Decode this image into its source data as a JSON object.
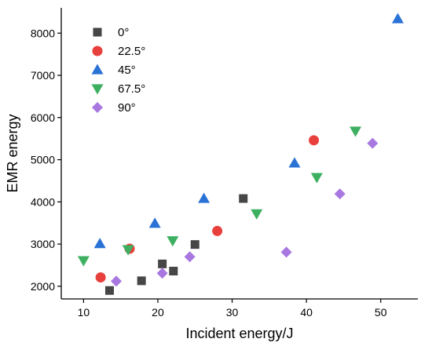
{
  "chart_data": {
    "type": "scatter",
    "title": "",
    "xlabel": "Incident energy/J",
    "ylabel": "EMR energy",
    "xlim": [
      7,
      55
    ],
    "ylim": [
      1700,
      8600
    ],
    "xticks": [
      10,
      20,
      30,
      40,
      50
    ],
    "yticks": [
      2000,
      3000,
      4000,
      5000,
      6000,
      7000,
      8000
    ],
    "grid": false,
    "legend": "top-left",
    "series": [
      {
        "name": "0°",
        "marker": "square",
        "color": "#464646",
        "points": [
          [
            13.5,
            1900
          ],
          [
            17.8,
            2130
          ],
          [
            20.6,
            2530
          ],
          [
            22.1,
            2360
          ],
          [
            25.0,
            2990
          ],
          [
            31.5,
            4080
          ]
        ]
      },
      {
        "name": "22.5°",
        "marker": "circle",
        "color": "#e8403c",
        "points": [
          [
            12.3,
            2210
          ],
          [
            16.2,
            2890
          ],
          [
            28.0,
            3310
          ],
          [
            41.0,
            5460
          ]
        ]
      },
      {
        "name": "45°",
        "marker": "triangle-up",
        "color": "#2a72d6",
        "points": [
          [
            12.2,
            3010
          ],
          [
            19.6,
            3490
          ],
          [
            26.2,
            4080
          ],
          [
            38.4,
            4920
          ],
          [
            52.3,
            8340
          ]
        ]
      },
      {
        "name": "67.5°",
        "marker": "triangle-down",
        "color": "#3cb060",
        "points": [
          [
            10.0,
            2610
          ],
          [
            16.0,
            2870
          ],
          [
            22.0,
            3080
          ],
          [
            33.3,
            3720
          ],
          [
            41.4,
            4580
          ],
          [
            46.6,
            5680
          ]
        ]
      },
      {
        "name": "90°",
        "marker": "diamond",
        "color": "#a878e0",
        "points": [
          [
            14.4,
            2120
          ],
          [
            20.6,
            2310
          ],
          [
            24.3,
            2700
          ],
          [
            37.3,
            2810
          ],
          [
            44.5,
            4190
          ],
          [
            48.9,
            5390
          ]
        ]
      }
    ]
  }
}
